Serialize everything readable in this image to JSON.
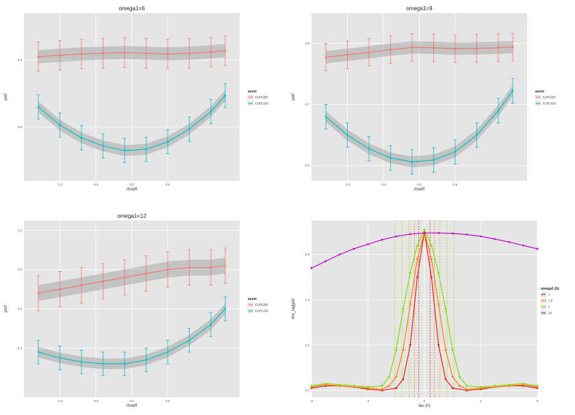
{
  "chart_data": [
    {
      "type": "line",
      "title": "omega1=6",
      "xlabel": "rhoeff",
      "ylabel": "perf",
      "xlim": [
        -1.5,
        1.5
      ],
      "ylim": [
        0.72,
        0.97
      ],
      "x_ticks": [
        -1.0,
        -0.5,
        0.0,
        0.5
      ],
      "x_tick_labels": [
        "-1.0",
        "-0.5",
        "0.0",
        "0.5"
      ],
      "y_ticks": [
        0.8,
        0.9
      ],
      "y_tick_labels": [
        "0.8",
        "0.9"
      ],
      "legend_title": "asset",
      "legend_position": "right",
      "series": [
        {
          "name": "EURGBP",
          "color": "#f8766d",
          "x": [
            -1.3,
            -1.0,
            -0.7,
            -0.4,
            -0.1,
            0.2,
            0.5,
            0.8,
            1.1,
            1.3
          ],
          "y": [
            0.905,
            0.907,
            0.909,
            0.91,
            0.911,
            0.91,
            0.909,
            0.91,
            0.912,
            0.914
          ],
          "err": 0.022
        },
        {
          "name": "EURUSD",
          "color": "#00bfc4",
          "x": [
            -1.3,
            -1.0,
            -0.7,
            -0.4,
            -0.1,
            0.2,
            0.5,
            0.8,
            1.1,
            1.3
          ],
          "y": [
            0.83,
            0.803,
            0.784,
            0.772,
            0.765,
            0.767,
            0.778,
            0.797,
            0.823,
            0.847
          ],
          "err": 0.018
        }
      ]
    },
    {
      "type": "line",
      "title": "omega1=9",
      "xlabel": "rhoeff",
      "ylabel": "perf",
      "xlim": [
        -1.5,
        1.5
      ],
      "ylim": [
        0.45,
        1.0
      ],
      "x_ticks": [
        -1.0,
        -0.5,
        0.0,
        0.5
      ],
      "x_tick_labels": [
        "-1.0",
        "-0.5",
        "0.0",
        "0.5"
      ],
      "y_ticks": [
        0.5,
        0.7,
        0.9
      ],
      "y_tick_labels": [
        "0.5",
        "0.7",
        "0.9"
      ],
      "legend_title": "asset",
      "legend_position": "right",
      "series": [
        {
          "name": "EURGBP",
          "color": "#f8766d",
          "x": [
            -1.3,
            -1.0,
            -0.7,
            -0.4,
            -0.1,
            0.2,
            0.5,
            0.8,
            1.1,
            1.3
          ],
          "y": [
            0.855,
            0.863,
            0.871,
            0.88,
            0.887,
            0.886,
            0.883,
            0.884,
            0.886,
            0.888
          ],
          "err": 0.045
        },
        {
          "name": "EURUSD",
          "color": "#00bfc4",
          "x": [
            -1.3,
            -1.0,
            -0.7,
            -0.4,
            -0.1,
            0.2,
            0.5,
            0.8,
            1.1,
            1.3
          ],
          "y": [
            0.66,
            0.6,
            0.555,
            0.525,
            0.512,
            0.518,
            0.545,
            0.6,
            0.68,
            0.745
          ],
          "err": 0.04
        }
      ]
    },
    {
      "type": "line",
      "title": "omega1=12",
      "xlabel": "rhoeff",
      "ylabel": "perf",
      "xlim": [
        -1.5,
        1.5
      ],
      "ylim": [
        0.15,
        1.05
      ],
      "x_ticks": [
        -1.0,
        -0.5,
        0.0,
        0.5
      ],
      "x_tick_labels": [
        "-1.0",
        "-0.5",
        "0.0",
        "0.5"
      ],
      "y_ticks": [
        0.4,
        0.6,
        0.8,
        1.0
      ],
      "y_tick_labels": [
        "0.4",
        "0.6",
        "0.8",
        "1.0"
      ],
      "legend_title": "asset",
      "legend_position": "right",
      "series": [
        {
          "name": "EURGBP",
          "color": "#f8766d",
          "x": [
            -1.3,
            -1.0,
            -0.7,
            -0.4,
            -0.1,
            0.2,
            0.5,
            0.8,
            1.1,
            1.3
          ],
          "y": [
            0.68,
            0.7,
            0.72,
            0.74,
            0.76,
            0.78,
            0.8,
            0.81,
            0.81,
            0.82
          ],
          "err": 0.09
        },
        {
          "name": "EURUSD",
          "color": "#00bfc4",
          "x": [
            -1.3,
            -1.0,
            -0.7,
            -0.4,
            -0.1,
            0.2,
            0.5,
            0.8,
            1.1,
            1.3
          ],
          "y": [
            0.38,
            0.35,
            0.33,
            0.32,
            0.32,
            0.34,
            0.38,
            0.44,
            0.52,
            0.6
          ],
          "err": 0.06
        }
      ]
    },
    {
      "type": "line",
      "title": "",
      "xlabel": "tau (h)",
      "ylabel": "rho_lagged",
      "xlim": [
        -8,
        8
      ],
      "ylim": [
        -0.03,
        0.75
      ],
      "x_ticks": [
        -8,
        -4,
        0,
        4,
        8
      ],
      "x_tick_labels": [
        "-8",
        "-4",
        "0",
        "4",
        "8"
      ],
      "y_ticks": [
        0.0,
        0.2,
        0.4,
        0.6
      ],
      "y_tick_labels": [
        "0.0",
        "0.2",
        "0.4",
        "0.6"
      ],
      "legend_title": "omega1 (h)",
      "legend_position": "right",
      "vlines": [
        {
          "x": -0.4,
          "color": "#e41a1c"
        },
        {
          "x": 0.4,
          "color": "#e41a1c"
        },
        {
          "x": -0.7,
          "color": "#ff7f00"
        },
        {
          "x": 0.7,
          "color": "#ff7f00"
        },
        {
          "x": -1.1,
          "color": "#a6d300"
        },
        {
          "x": 1.1,
          "color": "#a6d300"
        },
        {
          "x": -1.6,
          "color": "#a6d300"
        },
        {
          "x": 1.6,
          "color": "#a6d300"
        },
        {
          "x": -2.1,
          "color": "#a6d300"
        },
        {
          "x": 2.1,
          "color": "#a6d300"
        }
      ],
      "series": [
        {
          "name": "1",
          "color": "#e41a1c",
          "x": [
            -8,
            -7,
            -6,
            -5,
            -4,
            -3,
            -2,
            -1.5,
            -1,
            -0.5,
            0,
            0.5,
            1,
            1.5,
            2,
            3,
            4,
            5,
            6,
            7,
            8
          ],
          "y": [
            0.01,
            0.02,
            0.02,
            0.015,
            0.005,
            0.0,
            0.01,
            0.05,
            0.2,
            0.5,
            0.7,
            0.5,
            0.2,
            0.05,
            0.01,
            0.0,
            0.005,
            0.015,
            0.02,
            0.02,
            0.01
          ]
        },
        {
          "name": "1.5",
          "color": "#ff7f00",
          "x": [
            -8,
            -7,
            -6,
            -5,
            -4,
            -3,
            -2.5,
            -2,
            -1.5,
            -1,
            -0.5,
            0,
            0.5,
            1,
            1.5,
            2,
            2.5,
            3,
            4,
            5,
            6,
            7,
            8
          ],
          "y": [
            0.015,
            0.025,
            0.02,
            0.015,
            0.01,
            0.005,
            0.02,
            0.06,
            0.18,
            0.38,
            0.58,
            0.7,
            0.58,
            0.38,
            0.18,
            0.06,
            0.02,
            0.005,
            0.01,
            0.015,
            0.02,
            0.025,
            0.015
          ]
        },
        {
          "name": "2",
          "color": "#7fdc00",
          "x": [
            -8,
            -7,
            -6,
            -5,
            -4,
            -3,
            -2.5,
            -2,
            -1.5,
            -1,
            -0.5,
            0,
            0.5,
            1,
            1.5,
            2,
            2.5,
            3,
            4,
            5,
            6,
            7,
            8
          ],
          "y": [
            0.02,
            0.03,
            0.025,
            0.02,
            0.015,
            0.02,
            0.06,
            0.18,
            0.36,
            0.52,
            0.64,
            0.71,
            0.64,
            0.52,
            0.36,
            0.18,
            0.06,
            0.02,
            0.015,
            0.02,
            0.025,
            0.03,
            0.02
          ]
        },
        {
          "name": "24",
          "color": "#c000d0",
          "x": [
            -8,
            -7,
            -6,
            -5,
            -4,
            -3,
            -2,
            -1,
            0,
            1,
            2,
            3,
            4,
            5,
            6,
            7,
            8
          ],
          "y": [
            0.54,
            0.57,
            0.6,
            0.625,
            0.645,
            0.665,
            0.68,
            0.69,
            0.695,
            0.695,
            0.693,
            0.688,
            0.68,
            0.668,
            0.655,
            0.64,
            0.625
          ]
        }
      ]
    }
  ]
}
